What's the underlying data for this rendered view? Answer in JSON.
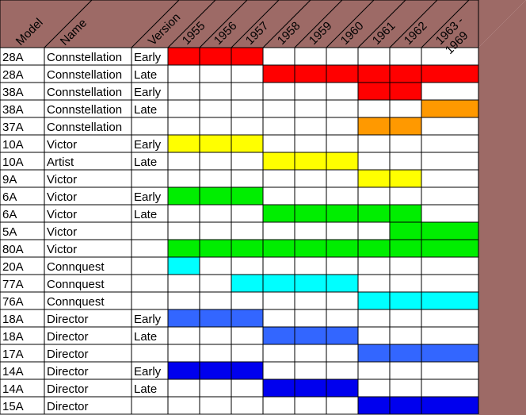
{
  "chart_data": {
    "type": "table",
    "headers": {
      "model": "Model",
      "name": "Name",
      "version": "Version"
    },
    "years": [
      "1955",
      "1956",
      "1957",
      "1958",
      "1959",
      "1960",
      "1961",
      "1962",
      "1963 -\n1969"
    ],
    "colors": {
      "red": "#ff0000",
      "orange": "#ff9900",
      "yellow": "#ffff00",
      "green": "#00ee00",
      "cyan": "#00ffff",
      "lightblue": "#3366ff",
      "blue": "#0000ee",
      "frame": "#9d6a66",
      "grid": "#000000"
    },
    "rows": [
      {
        "model": "28A",
        "name": "Connstellation",
        "version": "Early",
        "color": "red",
        "years": [
          0,
          2
        ]
      },
      {
        "model": "28A",
        "name": "Connstellation",
        "version": "Late",
        "color": "red",
        "years": [
          3,
          8
        ]
      },
      {
        "model": "38A",
        "name": "Connstellation",
        "version": "Early",
        "color": "red",
        "years": [
          6,
          7
        ]
      },
      {
        "model": "38A",
        "name": "Connstellation",
        "version": "Late",
        "color": "orange",
        "years": [
          8,
          8
        ]
      },
      {
        "model": "37A",
        "name": "Connstellation",
        "version": "",
        "color": "orange",
        "years": [
          6,
          7
        ]
      },
      {
        "model": "10A",
        "name": "Victor",
        "version": "Early",
        "color": "yellow",
        "years": [
          0,
          2
        ]
      },
      {
        "model": "10A",
        "name": "Artist",
        "version": "Late",
        "color": "yellow",
        "years": [
          3,
          5
        ]
      },
      {
        "model": "9A",
        "name": "Victor",
        "version": "",
        "color": "yellow",
        "years": [
          6,
          7
        ]
      },
      {
        "model": "6A",
        "name": "Victor",
        "version": "Early",
        "color": "green",
        "years": [
          0,
          2
        ]
      },
      {
        "model": "6A",
        "name": "Victor",
        "version": "Late",
        "color": "green",
        "years": [
          3,
          7
        ]
      },
      {
        "model": "5A",
        "name": "Victor",
        "version": "",
        "color": "green",
        "years": [
          7,
          8
        ]
      },
      {
        "model": "80A",
        "name": "Victor",
        "version": "",
        "color": "green",
        "years": [
          0,
          8
        ]
      },
      {
        "model": "20A",
        "name": "Connquest",
        "version": "",
        "color": "cyan",
        "years": [
          0,
          0
        ]
      },
      {
        "model": "77A",
        "name": "Connquest",
        "version": "",
        "color": "cyan",
        "years": [
          2,
          5
        ]
      },
      {
        "model": "76A",
        "name": "Connquest",
        "version": "",
        "color": "cyan",
        "years": [
          6,
          8
        ]
      },
      {
        "model": "18A",
        "name": "Director",
        "version": "Early",
        "color": "lightblue",
        "years": [
          0,
          2
        ]
      },
      {
        "model": "18A",
        "name": "Director",
        "version": "Late",
        "color": "lightblue",
        "years": [
          3,
          5
        ]
      },
      {
        "model": "17A",
        "name": "Director",
        "version": "",
        "color": "lightblue",
        "years": [
          6,
          8
        ]
      },
      {
        "model": "14A",
        "name": "Director",
        "version": "Early",
        "color": "blue",
        "years": [
          0,
          2
        ]
      },
      {
        "model": "14A",
        "name": "Director",
        "version": "Late",
        "color": "blue",
        "years": [
          3,
          5
        ]
      },
      {
        "model": "15A",
        "name": "Director",
        "version": "",
        "color": "blue",
        "years": [
          6,
          8
        ]
      }
    ]
  }
}
